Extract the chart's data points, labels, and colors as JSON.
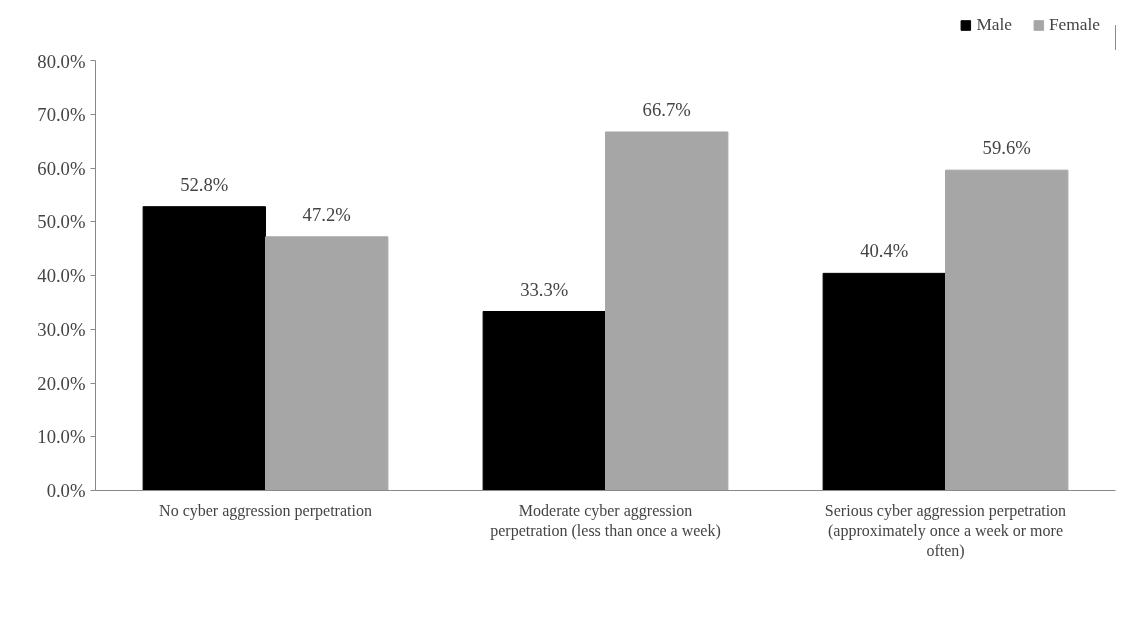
{
  "chart_data": {
    "type": "bar",
    "categories": [
      "No cyber aggression perpetration",
      "Moderate cyber aggression perpetration (less than once a week)",
      "Serious cyber aggression perpetration (approximately once a week or more often)"
    ],
    "series": [
      {
        "name": "Male",
        "color": "#000000",
        "values": [
          52.8,
          33.3,
          40.4
        ],
        "value_labels": [
          "52.8%",
          "33.3%",
          "40.4%"
        ]
      },
      {
        "name": "Female",
        "color": "#a6a6a6",
        "values": [
          47.2,
          66.7,
          59.6
        ],
        "value_labels": [
          "47.2%",
          "66.7%",
          "59.6%"
        ]
      }
    ],
    "ylim": [
      0,
      80
    ],
    "yticks": [
      {
        "value": 0,
        "label": "0.0%"
      },
      {
        "value": 10,
        "label": "10.0%"
      },
      {
        "value": 20,
        "label": "20.0%"
      },
      {
        "value": 30,
        "label": "30.0%"
      },
      {
        "value": 40,
        "label": "40.0%"
      },
      {
        "value": 50,
        "label": "50.0%"
      },
      {
        "value": 60,
        "label": "60.0%"
      },
      {
        "value": 70,
        "label": "70.0%"
      },
      {
        "value": 80,
        "label": "80.0%"
      }
    ],
    "grid": false,
    "legend": "top right"
  }
}
